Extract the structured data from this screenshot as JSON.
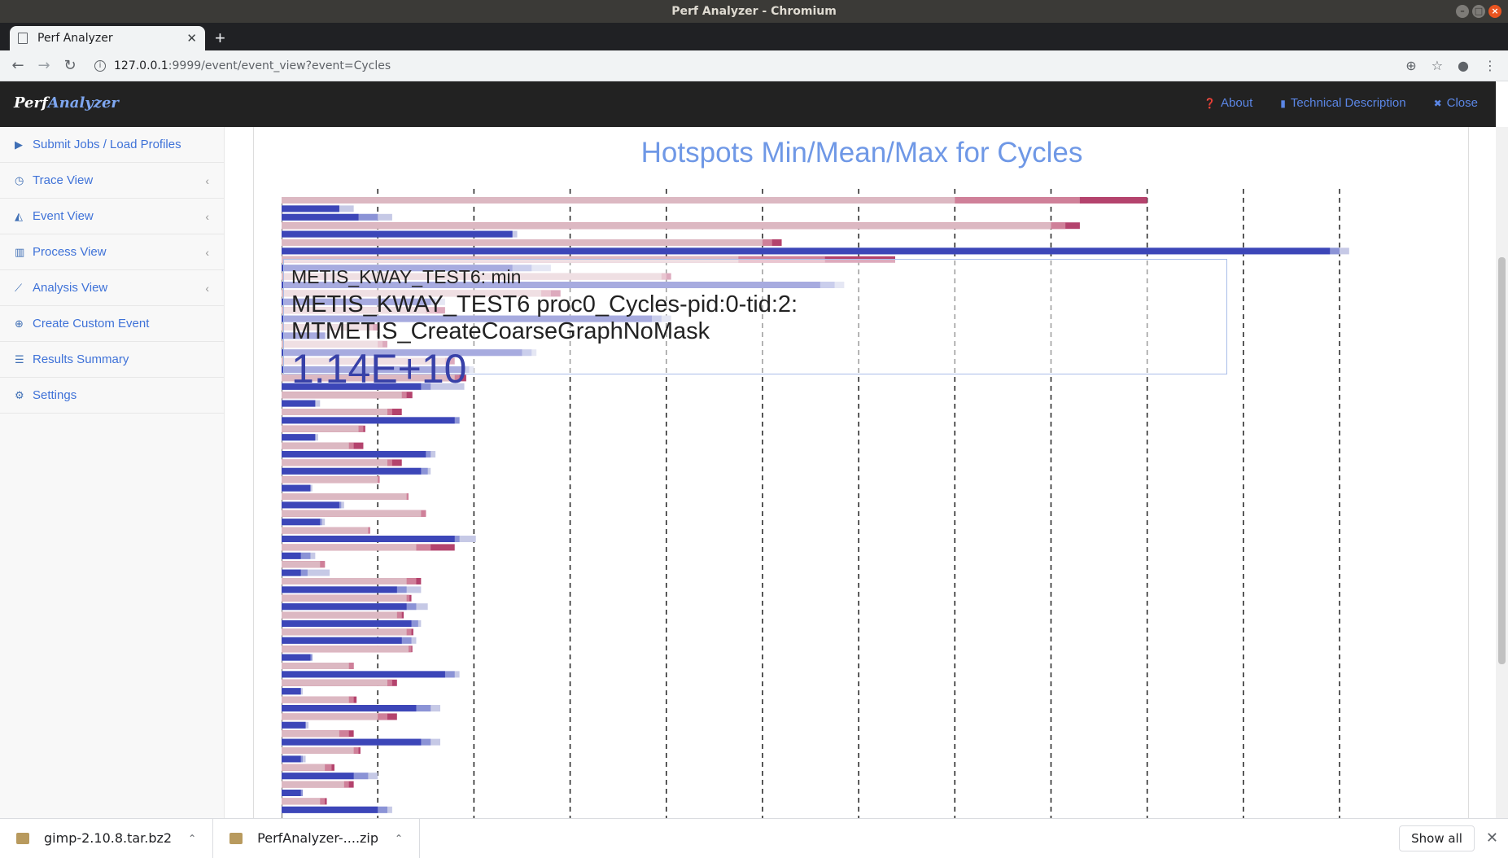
{
  "window": {
    "title": "Perf Analyzer - Chromium"
  },
  "browser": {
    "tab_title": "Perf Analyzer",
    "url_host": "127.0.0.1",
    "url_path": ":9999/event/event_view?event=Cycles"
  },
  "navbar": {
    "brand_part1": "Perf",
    "brand_part2": "Analyzer",
    "links": [
      {
        "label": "About",
        "icon": "question-circle-icon"
      },
      {
        "label": "Technical Description",
        "icon": "book-icon"
      },
      {
        "label": "Close",
        "icon": "close-icon"
      }
    ]
  },
  "sidebar": {
    "items": [
      {
        "label": "Submit Jobs / Load Profiles",
        "icon": "play-icon",
        "chevron": false
      },
      {
        "label": "Trace View",
        "icon": "clock-icon",
        "chevron": true
      },
      {
        "label": "Event View",
        "icon": "area-chart-icon",
        "chevron": true
      },
      {
        "label": "Process View",
        "icon": "bar-chart-icon",
        "chevron": true
      },
      {
        "label": "Analysis View",
        "icon": "line-chart-icon",
        "chevron": true
      },
      {
        "label": "Create Custom Event",
        "icon": "plus-circle-icon",
        "chevron": false
      },
      {
        "label": "Results Summary",
        "icon": "list-icon",
        "chevron": false
      },
      {
        "label": "Settings",
        "icon": "gear-icon",
        "chevron": false
      }
    ]
  },
  "tooltip": {
    "series": "METIS_KWAY_TEST6: min",
    "label": "METIS_KWAY_TEST6 proc0_Cycles-pid:0-tid:2: MTMETIS_CreateCoarseGraphNoMask",
    "value": "1.14E+10"
  },
  "chart_data": {
    "type": "bar",
    "orientation": "horizontal",
    "title": "Hotspots Min/Mean/Max for Cycles",
    "xlim": [
      0,
      11
    ],
    "grid": true,
    "colors": {
      "min": "#3c46b8",
      "mean": "#d9a3b3",
      "max": "#b24c72",
      "accent": "#6f98e6"
    },
    "rows": [
      {
        "s": "p",
        "a": 7.0,
        "b": 8.3,
        "c": 9.0
      },
      {
        "s": "b",
        "a": 0.6,
        "b": 0.6,
        "c": 0.75
      },
      {
        "s": "b",
        "a": 0.8,
        "b": 1.0,
        "c": 1.15
      },
      {
        "s": "p",
        "a": 8.0,
        "b": 8.15,
        "c": 8.3
      },
      {
        "s": "b",
        "a": 2.4,
        "b": 2.4,
        "c": 2.45
      },
      {
        "s": "p",
        "a": 5.0,
        "b": 5.1,
        "c": 5.2
      },
      {
        "s": "b",
        "a": 10.9,
        "b": 11.0,
        "c": 11.1
      },
      {
        "s": "p",
        "a": 4.75,
        "b": 5.65,
        "c": 6.38
      },
      {
        "s": "b",
        "a": 2.4,
        "b": 2.6,
        "c": 2.8
      },
      {
        "s": "p",
        "a": 3.95,
        "b": 4.0,
        "c": 4.05
      },
      {
        "s": "b",
        "a": 5.6,
        "b": 5.75,
        "c": 5.85
      },
      {
        "s": "p",
        "a": 2.7,
        "b": 2.8,
        "c": 2.9
      },
      {
        "s": "b",
        "a": 1.55,
        "b": 1.6,
        "c": 1.7
      },
      {
        "s": "p",
        "a": 1.5,
        "b": 1.6,
        "c": 1.7
      },
      {
        "s": "b",
        "a": 3.85,
        "b": 3.95,
        "c": 4.05
      },
      {
        "s": "p",
        "a": 0.9,
        "b": 0.95,
        "c": 1.02
      },
      {
        "s": "b",
        "a": 0.45,
        "b": 0.45,
        "c": 0.5
      },
      {
        "s": "p",
        "a": 1.0,
        "b": 1.05,
        "c": 1.1
      },
      {
        "s": "b",
        "a": 2.5,
        "b": 2.6,
        "c": 2.65
      },
      {
        "s": "p",
        "a": 1.7,
        "b": 1.75,
        "c": 1.8
      },
      {
        "s": "b",
        "a": 1.9,
        "b": 1.95,
        "c": 2.0
      },
      {
        "s": "p",
        "a": 1.8,
        "b": 1.85,
        "c": 1.92
      },
      {
        "s": "b",
        "a": 1.45,
        "b": 1.55,
        "c": 1.9
      },
      {
        "s": "p",
        "a": 1.25,
        "b": 1.3,
        "c": 1.36
      },
      {
        "s": "b",
        "a": 0.35,
        "b": 0.35,
        "c": 0.4
      },
      {
        "s": "p",
        "a": 1.1,
        "b": 1.15,
        "c": 1.25
      },
      {
        "s": "b",
        "a": 1.8,
        "b": 1.85,
        "c": 1.85
      },
      {
        "s": "p",
        "a": 0.8,
        "b": 0.85,
        "c": 0.87
      },
      {
        "s": "b",
        "a": 0.35,
        "b": 0.35,
        "c": 0.38
      },
      {
        "s": "p",
        "a": 0.7,
        "b": 0.75,
        "c": 0.85
      },
      {
        "s": "b",
        "a": 1.5,
        "b": 1.55,
        "c": 1.6
      },
      {
        "s": "p",
        "a": 1.1,
        "b": 1.15,
        "c": 1.25
      },
      {
        "s": "b",
        "a": 1.45,
        "b": 1.52,
        "c": 1.55
      },
      {
        "s": "p",
        "a": 1.0,
        "b": 1.02,
        "c": 1.02
      },
      {
        "s": "b",
        "a": 0.3,
        "b": 0.3,
        "c": 0.32
      },
      {
        "s": "p",
        "a": 1.3,
        "b": 1.32,
        "c": 1.32
      },
      {
        "s": "b",
        "a": 0.6,
        "b": 0.62,
        "c": 0.65
      },
      {
        "s": "p",
        "a": 1.45,
        "b": 1.5,
        "c": 1.5
      },
      {
        "s": "b",
        "a": 0.4,
        "b": 0.42,
        "c": 0.45
      },
      {
        "s": "p",
        "a": 0.9,
        "b": 0.92,
        "c": 0.92
      },
      {
        "s": "b",
        "a": 1.8,
        "b": 1.85,
        "c": 2.02
      },
      {
        "s": "p",
        "a": 1.4,
        "b": 1.55,
        "c": 1.8
      },
      {
        "s": "b",
        "a": 0.2,
        "b": 0.3,
        "c": 0.35
      },
      {
        "s": "p",
        "a": 0.4,
        "b": 0.45,
        "c": 0.45
      },
      {
        "s": "b",
        "a": 0.2,
        "b": 0.27,
        "c": 0.5
      },
      {
        "s": "p",
        "a": 1.3,
        "b": 1.4,
        "c": 1.45
      },
      {
        "s": "b",
        "a": 1.2,
        "b": 1.3,
        "c": 1.45
      },
      {
        "s": "p",
        "a": 1.3,
        "b": 1.33,
        "c": 1.35
      },
      {
        "s": "b",
        "a": 1.3,
        "b": 1.4,
        "c": 1.52
      },
      {
        "s": "p",
        "a": 1.2,
        "b": 1.25,
        "c": 1.27
      },
      {
        "s": "b",
        "a": 1.35,
        "b": 1.42,
        "c": 1.45
      },
      {
        "s": "p",
        "a": 1.3,
        "b": 1.35,
        "c": 1.37
      },
      {
        "s": "b",
        "a": 1.25,
        "b": 1.35,
        "c": 1.4
      },
      {
        "s": "p",
        "a": 1.32,
        "b": 1.35,
        "c": 1.36
      },
      {
        "s": "b",
        "a": 0.3,
        "b": 0.32,
        "c": 0.32
      },
      {
        "s": "p",
        "a": 0.7,
        "b": 0.75,
        "c": 0.75
      },
      {
        "s": "b",
        "a": 1.7,
        "b": 1.8,
        "c": 1.85
      },
      {
        "s": "p",
        "a": 1.1,
        "b": 1.15,
        "c": 1.2
      },
      {
        "s": "b",
        "a": 0.2,
        "b": 0.2,
        "c": 0.22
      },
      {
        "s": "p",
        "a": 0.7,
        "b": 0.75,
        "c": 0.78
      },
      {
        "s": "b",
        "a": 1.4,
        "b": 1.55,
        "c": 1.65
      },
      {
        "s": "p",
        "a": 1.0,
        "b": 1.1,
        "c": 1.2
      },
      {
        "s": "b",
        "a": 0.25,
        "b": 0.25,
        "c": 0.28
      },
      {
        "s": "p",
        "a": 0.6,
        "b": 0.7,
        "c": 0.75
      },
      {
        "s": "b",
        "a": 1.45,
        "b": 1.55,
        "c": 1.65
      },
      {
        "s": "p",
        "a": 0.75,
        "b": 0.8,
        "c": 0.82
      },
      {
        "s": "b",
        "a": 0.2,
        "b": 0.22,
        "c": 0.25
      },
      {
        "s": "p",
        "a": 0.45,
        "b": 0.52,
        "c": 0.55
      },
      {
        "s": "b",
        "a": 0.75,
        "b": 0.9,
        "c": 1.0
      },
      {
        "s": "p",
        "a": 0.65,
        "b": 0.7,
        "c": 0.75
      },
      {
        "s": "b",
        "a": 0.2,
        "b": 0.22,
        "c": 0.22
      },
      {
        "s": "p",
        "a": 0.4,
        "b": 0.45,
        "c": 0.47
      },
      {
        "s": "b",
        "a": 1.0,
        "b": 1.1,
        "c": 1.15
      }
    ]
  },
  "downloads": {
    "items": [
      {
        "name": "gimp-2.10.8.tar.bz2"
      },
      {
        "name": "PerfAnalyzer-....zip"
      }
    ],
    "show_all": "Show all"
  }
}
